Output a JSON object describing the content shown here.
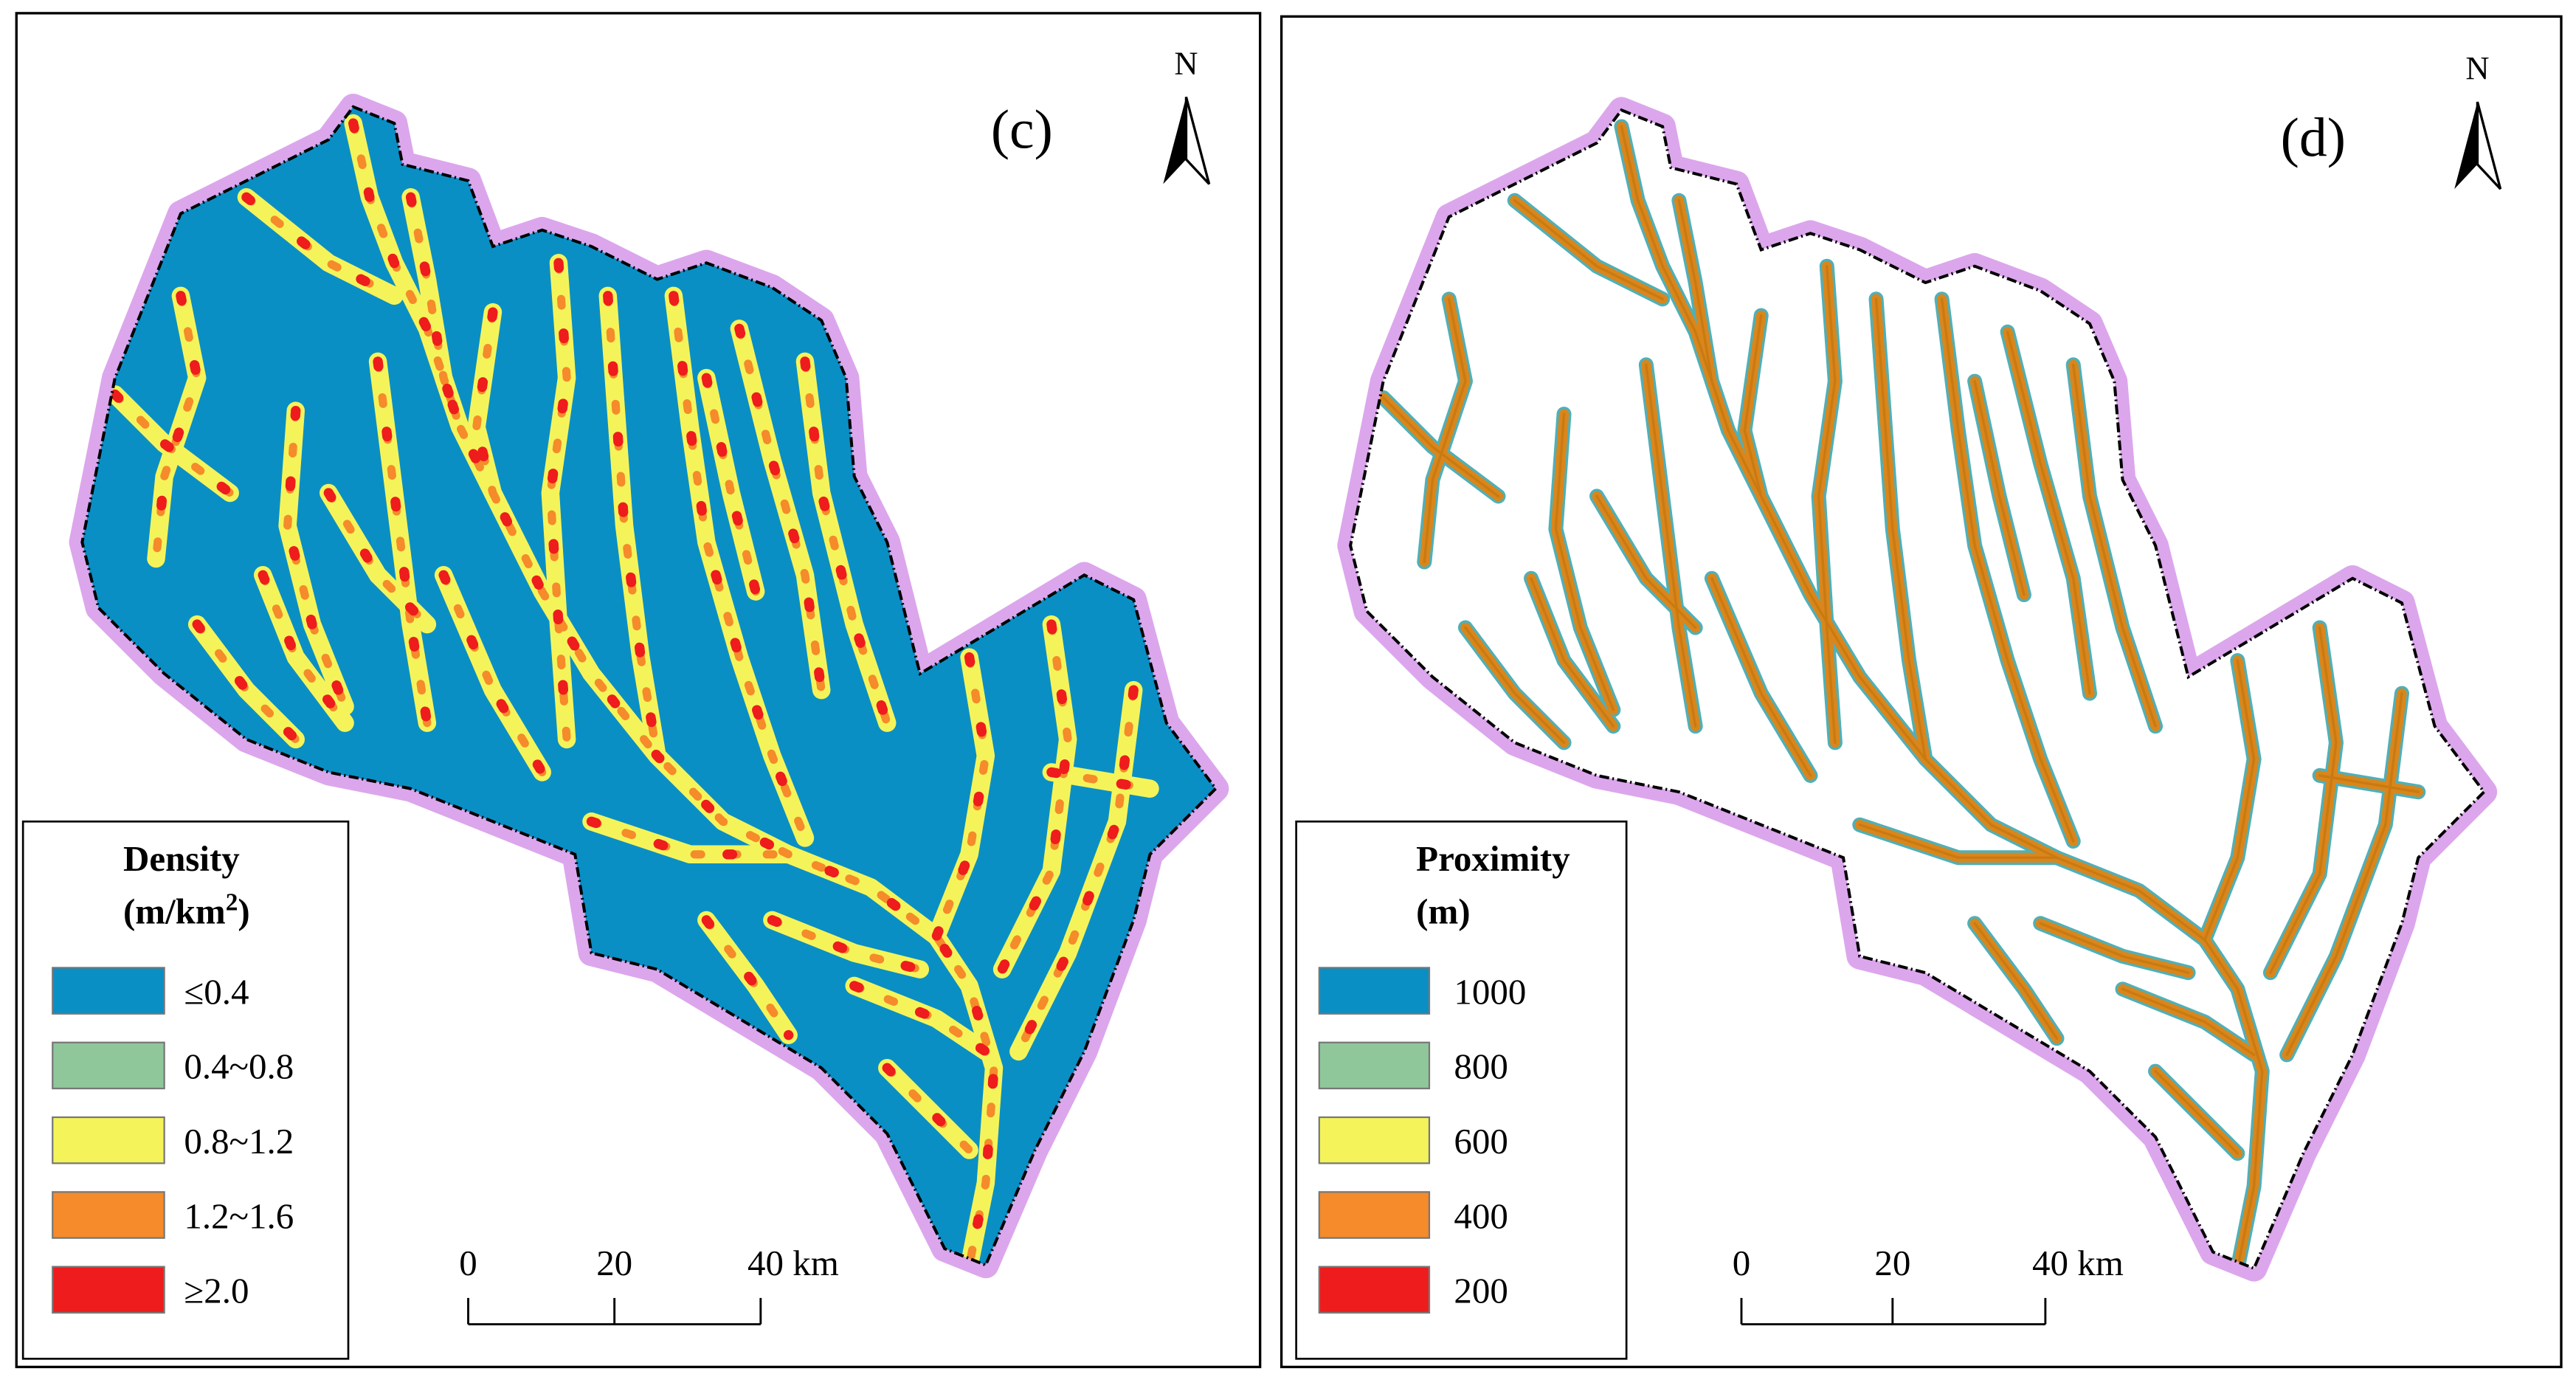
{
  "panels": [
    {
      "label": "(c)",
      "north": "N",
      "map_fill": "#0a8fc4",
      "stream_colors": [
        "#f4f45a",
        "#f58b2a",
        "#ee1c1c"
      ],
      "legend": {
        "title": "Density",
        "unit": [
          {
            "text": "(m/km"
          },
          {
            "text": "2",
            "sup": true
          },
          {
            "text": ")"
          }
        ],
        "items": [
          {
            "label": "≤0.4",
            "color": "#0a8fc4"
          },
          {
            "label": "0.4~0.8",
            "color": "#8fc79b"
          },
          {
            "label": "0.8~1.2",
            "color": "#f4f45a"
          },
          {
            "label": "1.2~1.6",
            "color": "#f58b2a"
          },
          {
            "label": "≥2.0",
            "color": "#ee1c1c"
          }
        ]
      },
      "scale": [
        "0",
        "20",
        "40 km"
      ]
    },
    {
      "label": "(d)",
      "north": "N",
      "map_fill": "#ffffff",
      "stream_colors": [
        "#4fb0b8",
        "#d9861c",
        "#c97a10"
      ],
      "legend": {
        "title": "Proximity",
        "unit": [
          {
            "text": "(m)"
          }
        ],
        "items": [
          {
            "label": "1000",
            "color": "#0a8fc4"
          },
          {
            "label": "800",
            "color": "#8fc79b"
          },
          {
            "label": "600",
            "color": "#f4f45a"
          },
          {
            "label": "400",
            "color": "#f58b2a"
          },
          {
            "label": "200",
            "color": "#ee1c1c"
          }
        ]
      },
      "scale": [
        "0",
        "20",
        "40 km"
      ]
    }
  ]
}
